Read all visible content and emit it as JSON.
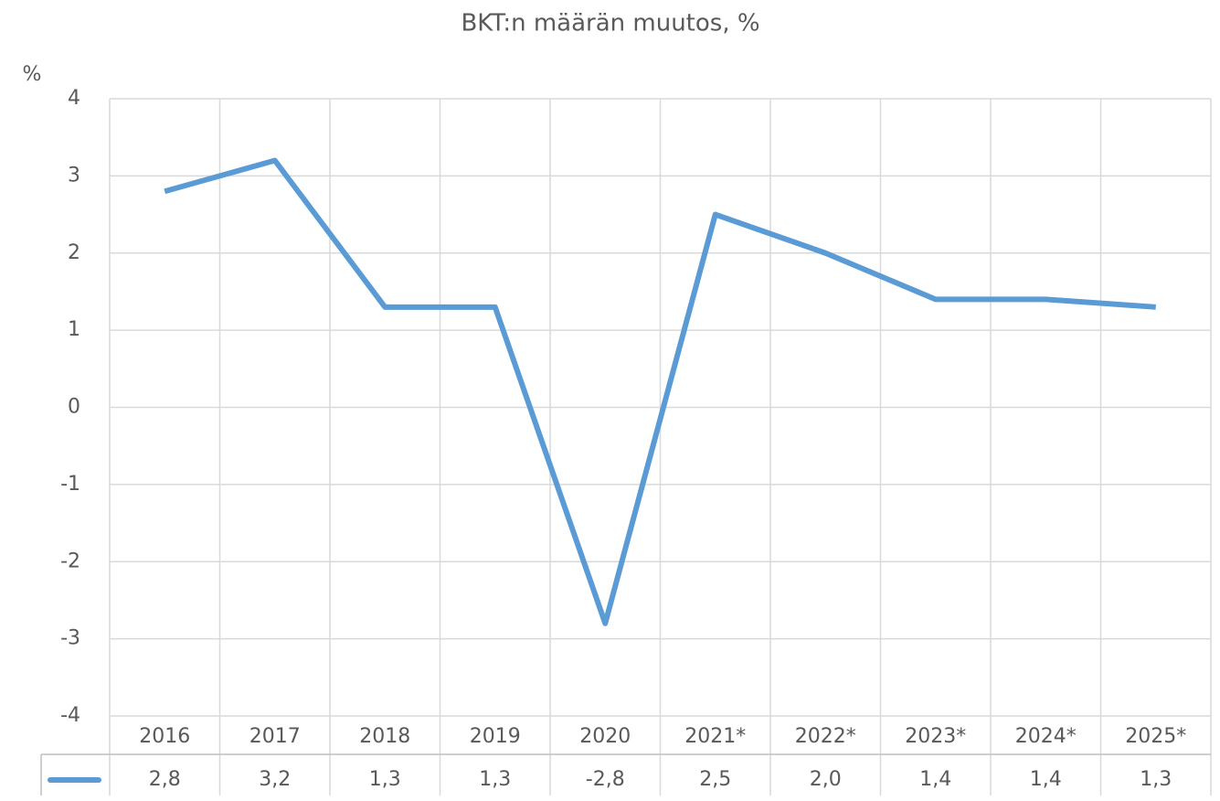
{
  "chart_data": {
    "type": "line",
    "title": "BKT:n määrän muutos, %",
    "y_label": "%",
    "categories": [
      "2016",
      "2017",
      "2018",
      "2019",
      "2020",
      "2021*",
      "2022*",
      "2023*",
      "2024*",
      "2025*"
    ],
    "values": [
      2.8,
      3.2,
      1.3,
      1.3,
      -2.8,
      2.5,
      2.0,
      1.4,
      1.4,
      1.3
    ],
    "value_labels": [
      "2,8",
      "3,2",
      "1,3",
      "1,3",
      "-2,8",
      "2,5",
      "2,0",
      "1,4",
      "1,4",
      "1,3"
    ],
    "color": "#5b9bd5",
    "ylim": [
      -4,
      4
    ],
    "yticks": [
      -4,
      -3,
      -2,
      -1,
      0,
      1,
      2,
      3,
      4
    ],
    "grid": true
  }
}
